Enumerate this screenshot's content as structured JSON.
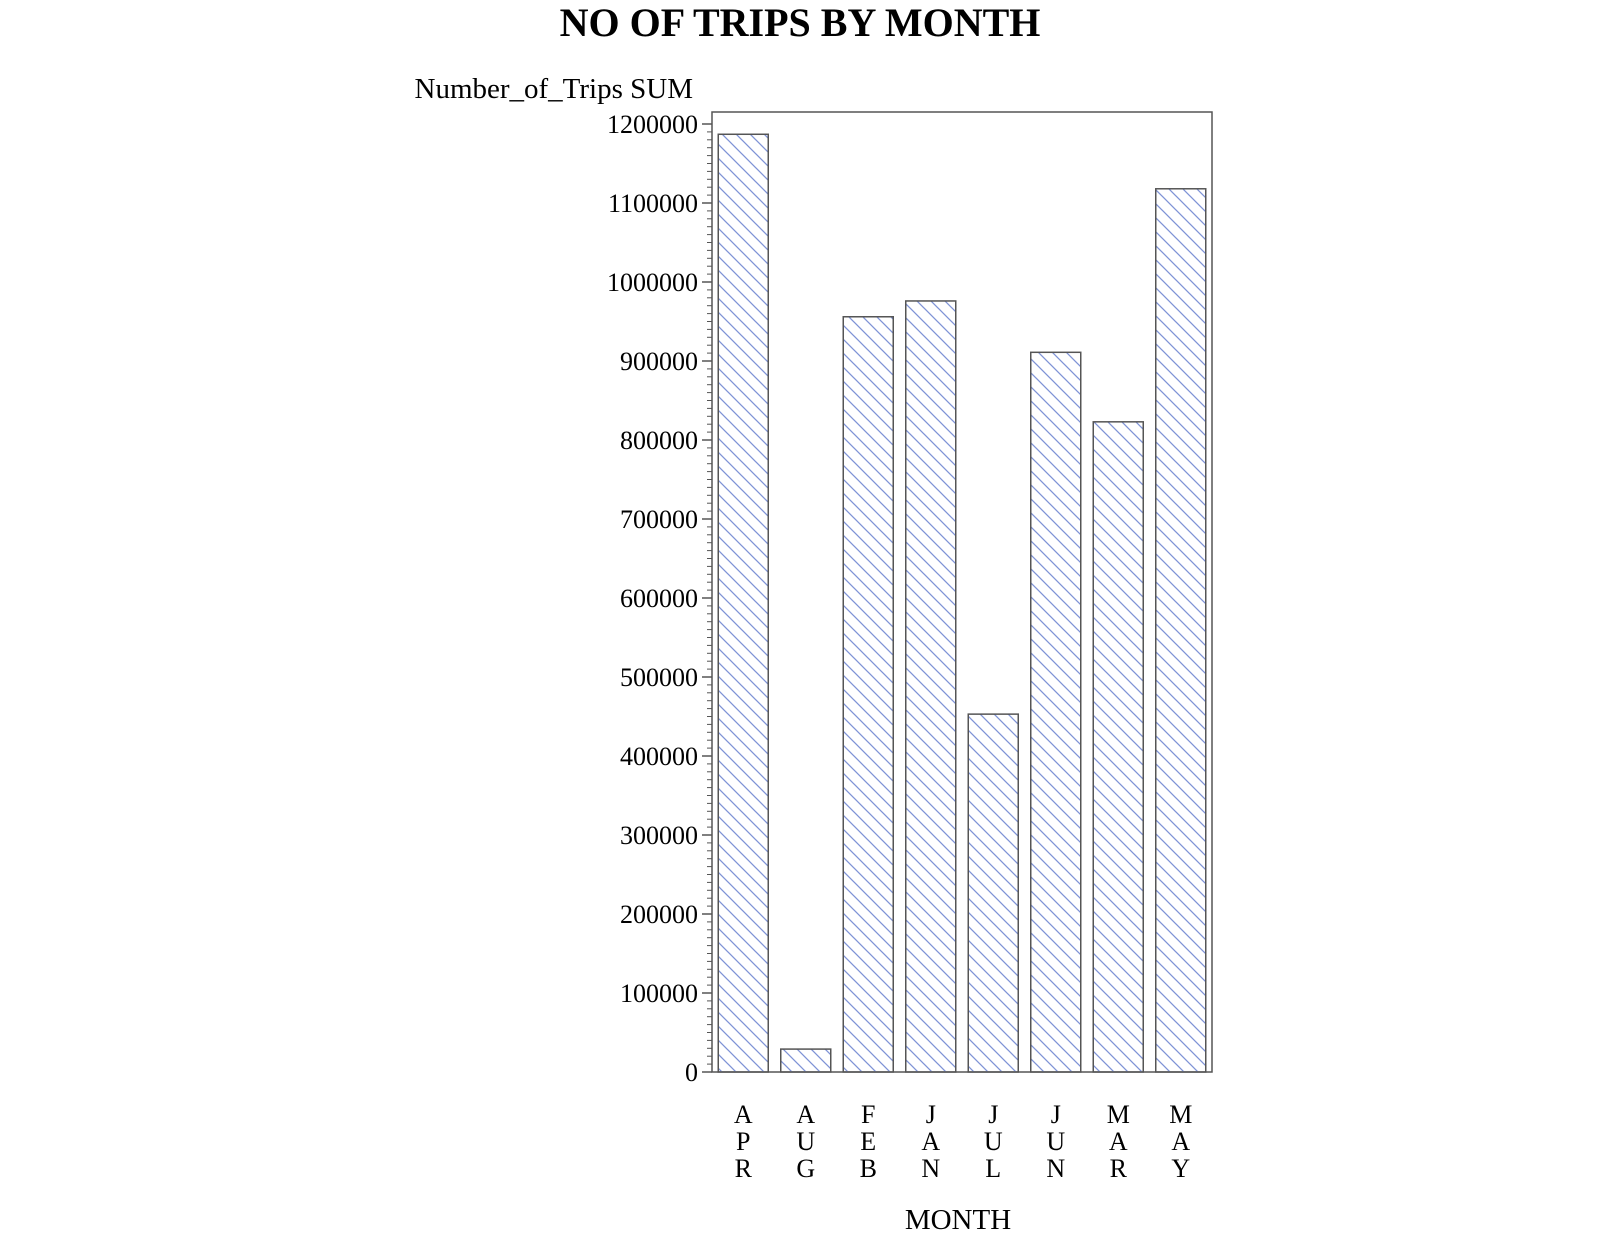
{
  "chart_data": {
    "type": "bar",
    "title": "NO OF TRIPS BY MONTH",
    "xlabel": "MONTH",
    "ylabel": "Number_of_Trips SUM",
    "categories": [
      "APR",
      "AUG",
      "FEB",
      "JAN",
      "JUL",
      "JUN",
      "MAR",
      "MAY"
    ],
    "values": [
      1187000,
      29000,
      956000,
      976000,
      453000,
      911000,
      823000,
      1118000
    ],
    "ylim": [
      0,
      1200000
    ],
    "yticks": [
      "0",
      "100000",
      "200000",
      "300000",
      "400000",
      "500000",
      "600000",
      "700000",
      "800000",
      "900000",
      "1000000",
      "1100000",
      "1200000"
    ],
    "bar_fill": "hatched",
    "hatch_color": "#7f93d6",
    "outline_color": "#555555",
    "grid": false,
    "legend": "none"
  }
}
